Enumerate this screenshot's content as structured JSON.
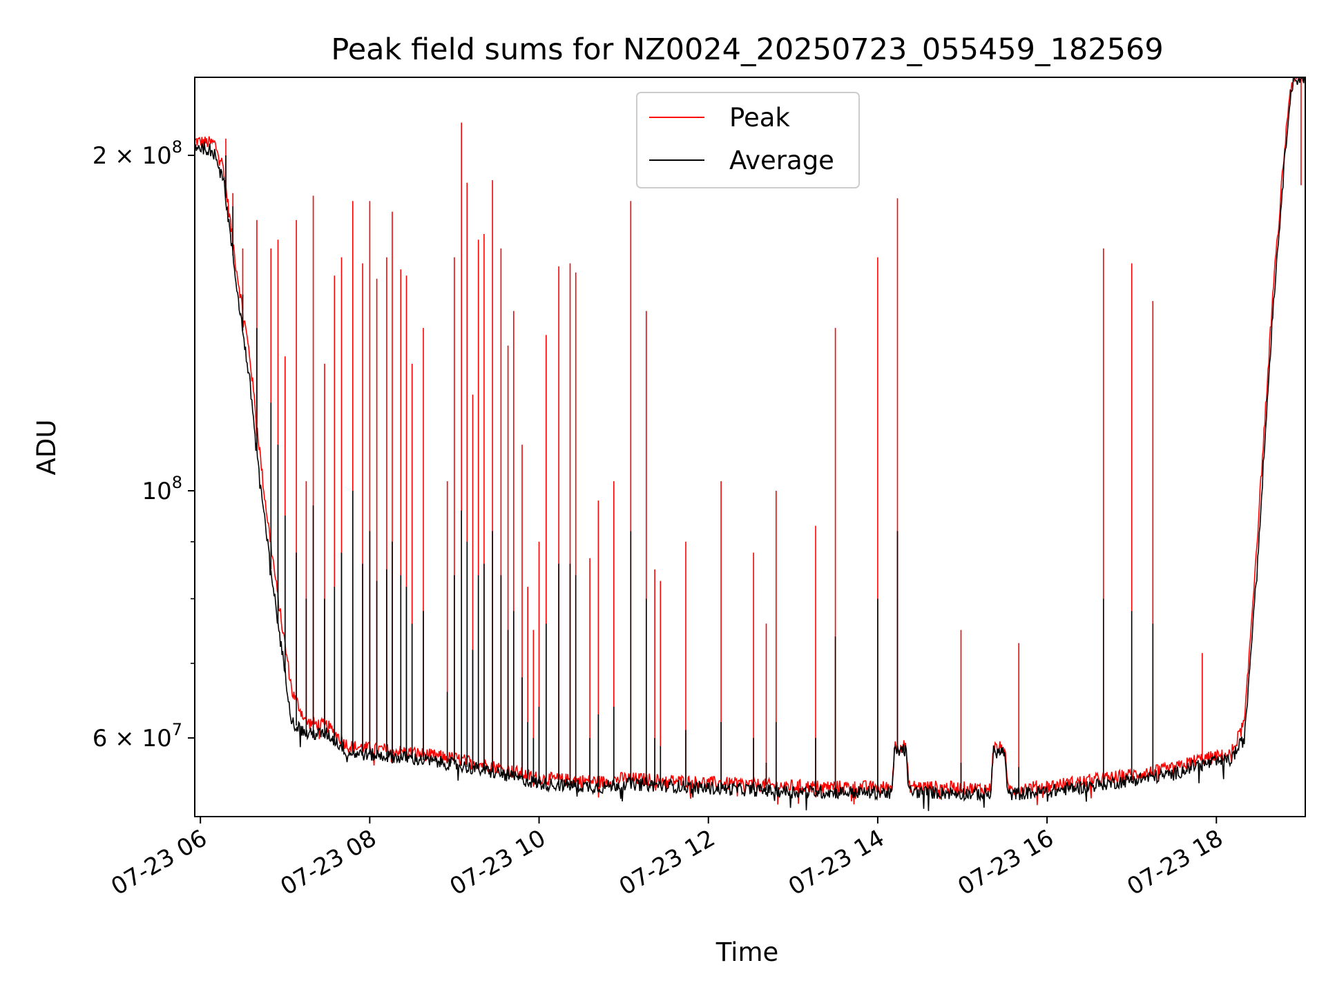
{
  "chart_data": {
    "type": "line",
    "title": "Peak field sums for NZ0024_20250723_055459_182569",
    "xlabel": "Time",
    "ylabel": "ADU",
    "y_scale": "log",
    "ylim": [
      51000000,
      235000000
    ],
    "xlim": [
      "2025-07-23 05:56",
      "2025-07-23 19:03"
    ],
    "grid": true,
    "legend_position": "upper center",
    "x_ticks": [
      {
        "time": "2025-07-23 06:00",
        "label": "07-23 06"
      },
      {
        "time": "2025-07-23 08:00",
        "label": "07-23 08"
      },
      {
        "time": "2025-07-23 10:00",
        "label": "07-23 10"
      },
      {
        "time": "2025-07-23 12:00",
        "label": "07-23 12"
      },
      {
        "time": "2025-07-23 14:00",
        "label": "07-23 14"
      },
      {
        "time": "2025-07-23 16:00",
        "label": "07-23 16"
      },
      {
        "time": "2025-07-23 18:00",
        "label": "07-23 18"
      }
    ],
    "y_major_ticks": [
      {
        "value": 60000000,
        "base": "6",
        "mult": "×",
        "exp_base": "10",
        "exp": "7"
      },
      {
        "value": 100000000,
        "base": "",
        "mult": "",
        "exp_base": "10",
        "exp": "8"
      },
      {
        "value": 200000000,
        "base": "2",
        "mult": "×",
        "exp_base": "10",
        "exp": "8"
      }
    ],
    "y_minor_grid": [
      70000000,
      80000000,
      90000000
    ],
    "series": [
      {
        "name": "Peak",
        "color": "#ff0000",
        "baseline": [
          [
            "2025-07-23 05:56",
            206000000
          ],
          [
            "2025-07-23 06:10",
            205000000
          ],
          [
            "2025-07-23 06:16",
            196000000
          ],
          [
            "2025-07-23 06:25",
            160000000
          ],
          [
            "2025-07-23 06:35",
            132000000
          ],
          [
            "2025-07-23 06:45",
            100000000
          ],
          [
            "2025-07-23 06:55",
            80000000
          ],
          [
            "2025-07-23 07:05",
            66000000
          ],
          [
            "2025-07-23 07:15",
            62000000
          ],
          [
            "2025-07-23 07:30",
            61500000
          ],
          [
            "2025-07-23 07:45",
            59000000
          ],
          [
            "2025-07-23 08:30",
            58200000
          ],
          [
            "2025-07-23 09:00",
            57500000
          ],
          [
            "2025-07-23 09:30",
            56500000
          ],
          [
            "2025-07-23 10:00",
            55200000
          ],
          [
            "2025-07-23 10:45",
            54800000
          ],
          [
            "2025-07-23 11:00",
            55200000
          ],
          [
            "2025-07-23 12:00",
            54700000
          ],
          [
            "2025-07-23 13:00",
            54300000
          ],
          [
            "2025-07-23 13:58",
            54200000
          ],
          [
            "2025-07-23 14:10",
            54200000
          ],
          [
            "2025-07-23 14:12",
            59000000
          ],
          [
            "2025-07-23 14:20",
            59000000
          ],
          [
            "2025-07-23 14:22",
            54300000
          ],
          [
            "2025-07-23 15:20",
            54000000
          ],
          [
            "2025-07-23 15:22",
            58800000
          ],
          [
            "2025-07-23 15:30",
            58800000
          ],
          [
            "2025-07-23 15:32",
            54000000
          ],
          [
            "2025-07-23 16:00",
            54300000
          ],
          [
            "2025-07-23 17:00",
            55600000
          ],
          [
            "2025-07-23 17:30",
            56300000
          ],
          [
            "2025-07-23 17:45",
            57300000
          ],
          [
            "2025-07-23 18:10",
            58000000
          ],
          [
            "2025-07-23 18:20",
            62000000
          ],
          [
            "2025-07-23 18:30",
            95000000
          ],
          [
            "2025-07-23 18:40",
            150000000
          ],
          [
            "2025-07-23 18:48",
            200000000
          ],
          [
            "2025-07-23 18:52",
            228000000
          ],
          [
            "2025-07-23 18:55",
            235000000
          ],
          [
            "2025-07-23 19:03",
            235000000
          ]
        ],
        "spikes": [
          [
            "2025-07-23 06:18",
            207000000
          ],
          [
            "2025-07-23 06:23",
            185000000
          ],
          [
            "2025-07-23 06:30",
            165000000
          ],
          [
            "2025-07-23 06:40",
            175000000
          ],
          [
            "2025-07-23 06:50",
            165000000
          ],
          [
            "2025-07-23 06:55",
            168000000
          ],
          [
            "2025-07-23 07:00",
            132000000
          ],
          [
            "2025-07-23 07:08",
            175000000
          ],
          [
            "2025-07-23 07:15",
            102000000
          ],
          [
            "2025-07-23 07:20",
            184000000
          ],
          [
            "2025-07-23 07:28",
            130000000
          ],
          [
            "2025-07-23 07:35",
            156000000
          ],
          [
            "2025-07-23 07:40",
            162000000
          ],
          [
            "2025-07-23 07:48",
            182000000
          ],
          [
            "2025-07-23 07:55",
            160000000
          ],
          [
            "2025-07-23 08:00",
            182000000
          ],
          [
            "2025-07-23 08:05",
            155000000
          ],
          [
            "2025-07-23 08:12",
            162000000
          ],
          [
            "2025-07-23 08:16",
            178000000
          ],
          [
            "2025-07-23 08:22",
            158000000
          ],
          [
            "2025-07-23 08:26",
            156000000
          ],
          [
            "2025-07-23 08:30",
            130000000
          ],
          [
            "2025-07-23 08:38",
            140000000
          ],
          [
            "2025-07-23 08:55",
            102000000
          ],
          [
            "2025-07-23 09:00",
            162000000
          ],
          [
            "2025-07-23 09:05",
            214000000
          ],
          [
            "2025-07-23 09:09",
            189000000
          ],
          [
            "2025-07-23 09:13",
            122000000
          ],
          [
            "2025-07-23 09:17",
            168000000
          ],
          [
            "2025-07-23 09:21",
            170000000
          ],
          [
            "2025-07-23 09:27",
            190000000
          ],
          [
            "2025-07-23 09:33",
            165000000
          ],
          [
            "2025-07-23 09:38",
            135000000
          ],
          [
            "2025-07-23 09:42",
            145000000
          ],
          [
            "2025-07-23 09:48",
            110000000
          ],
          [
            "2025-07-23 09:52",
            82000000
          ],
          [
            "2025-07-23 09:56",
            75000000
          ],
          [
            "2025-07-23 10:00",
            90000000
          ],
          [
            "2025-07-23 10:05",
            138000000
          ],
          [
            "2025-07-23 10:14",
            159000000
          ],
          [
            "2025-07-23 10:22",
            160000000
          ],
          [
            "2025-07-23 10:26",
            157000000
          ],
          [
            "2025-07-23 10:36",
            87000000
          ],
          [
            "2025-07-23 10:42",
            98000000
          ],
          [
            "2025-07-23 10:53",
            102000000
          ],
          [
            "2025-07-23 11:05",
            182000000
          ],
          [
            "2025-07-23 11:16",
            145000000
          ],
          [
            "2025-07-23 11:22",
            85000000
          ],
          [
            "2025-07-23 11:26",
            83000000
          ],
          [
            "2025-07-23 11:44",
            90000000
          ],
          [
            "2025-07-23 12:09",
            102000000
          ],
          [
            "2025-07-23 12:32",
            88000000
          ],
          [
            "2025-07-23 12:41",
            76000000
          ],
          [
            "2025-07-23 12:48",
            100000000
          ],
          [
            "2025-07-23 13:16",
            93000000
          ],
          [
            "2025-07-23 13:30",
            140000000
          ],
          [
            "2025-07-23 14:00",
            162000000
          ],
          [
            "2025-07-23 14:14",
            183000000
          ],
          [
            "2025-07-23 14:59",
            75000000
          ],
          [
            "2025-07-23 15:40",
            73000000
          ],
          [
            "2025-07-23 16:40",
            165000000
          ],
          [
            "2025-07-23 17:00",
            160000000
          ],
          [
            "2025-07-23 17:15",
            148000000
          ],
          [
            "2025-07-23 17:50",
            71500000
          ],
          [
            "2025-07-23 19:00",
            188000000
          ],
          [
            "2025-07-23 19:03",
            88000000
          ]
        ]
      },
      {
        "name": "Average",
        "color": "#000000",
        "baseline": [
          [
            "2025-07-23 05:56",
            204000000
          ],
          [
            "2025-07-23 06:10",
            202000000
          ],
          [
            "2025-07-23 06:16",
            192000000
          ],
          [
            "2025-07-23 06:25",
            155000000
          ],
          [
            "2025-07-23 06:35",
            125000000
          ],
          [
            "2025-07-23 06:45",
            95000000
          ],
          [
            "2025-07-23 06:55",
            76000000
          ],
          [
            "2025-07-23 07:05",
            62000000
          ],
          [
            "2025-07-23 07:15",
            60500000
          ],
          [
            "2025-07-23 07:30",
            60500000
          ],
          [
            "2025-07-23 07:45",
            58200000
          ],
          [
            "2025-07-23 08:30",
            57500000
          ],
          [
            "2025-07-23 09:00",
            56800000
          ],
          [
            "2025-07-23 09:30",
            55800000
          ],
          [
            "2025-07-23 10:00",
            54600000
          ],
          [
            "2025-07-23 10:45",
            54200000
          ],
          [
            "2025-07-23 11:00",
            54600000
          ],
          [
            "2025-07-23 12:00",
            54100000
          ],
          [
            "2025-07-23 13:00",
            53700000
          ],
          [
            "2025-07-23 13:58",
            53600000
          ],
          [
            "2025-07-23 14:10",
            53600000
          ],
          [
            "2025-07-23 14:12",
            58500000
          ],
          [
            "2025-07-23 14:20",
            58500000
          ],
          [
            "2025-07-23 14:22",
            53700000
          ],
          [
            "2025-07-23 15:20",
            53400000
          ],
          [
            "2025-07-23 15:22",
            58300000
          ],
          [
            "2025-07-23 15:30",
            58300000
          ],
          [
            "2025-07-23 15:32",
            53400000
          ],
          [
            "2025-07-23 16:00",
            53700000
          ],
          [
            "2025-07-23 17:00",
            55000000
          ],
          [
            "2025-07-23 17:30",
            55700000
          ],
          [
            "2025-07-23 17:45",
            56700000
          ],
          [
            "2025-07-23 18:10",
            57300000
          ],
          [
            "2025-07-23 18:20",
            60000000
          ],
          [
            "2025-07-23 18:30",
            90000000
          ],
          [
            "2025-07-23 18:40",
            145000000
          ],
          [
            "2025-07-23 18:48",
            195000000
          ],
          [
            "2025-07-23 18:52",
            225000000
          ],
          [
            "2025-07-23 18:55",
            234000000
          ],
          [
            "2025-07-23 19:03",
            235000000
          ]
        ],
        "spikes": [
          [
            "2025-07-23 06:18",
            200000000
          ],
          [
            "2025-07-23 06:23",
            180000000
          ],
          [
            "2025-07-23 06:30",
            150000000
          ],
          [
            "2025-07-23 06:40",
            140000000
          ],
          [
            "2025-07-23 06:50",
            120000000
          ],
          [
            "2025-07-23 06:55",
            110000000
          ],
          [
            "2025-07-23 07:00",
            95000000
          ],
          [
            "2025-07-23 07:08",
            88000000
          ],
          [
            "2025-07-23 07:15",
            80000000
          ],
          [
            "2025-07-23 07:20",
            97000000
          ],
          [
            "2025-07-23 07:28",
            80000000
          ],
          [
            "2025-07-23 07:35",
            82000000
          ],
          [
            "2025-07-23 07:40",
            88000000
          ],
          [
            "2025-07-23 07:48",
            100000000
          ],
          [
            "2025-07-23 07:55",
            86000000
          ],
          [
            "2025-07-23 08:00",
            92000000
          ],
          [
            "2025-07-23 08:05",
            83000000
          ],
          [
            "2025-07-23 08:12",
            85000000
          ],
          [
            "2025-07-23 08:16",
            90000000
          ],
          [
            "2025-07-23 08:22",
            84000000
          ],
          [
            "2025-07-23 08:26",
            82000000
          ],
          [
            "2025-07-23 08:30",
            76000000
          ],
          [
            "2025-07-23 08:38",
            78000000
          ],
          [
            "2025-07-23 08:55",
            66000000
          ],
          [
            "2025-07-23 09:00",
            84000000
          ],
          [
            "2025-07-23 09:05",
            96000000
          ],
          [
            "2025-07-23 09:09",
            90000000
          ],
          [
            "2025-07-23 09:13",
            72000000
          ],
          [
            "2025-07-23 09:17",
            84000000
          ],
          [
            "2025-07-23 09:21",
            86000000
          ],
          [
            "2025-07-23 09:27",
            92000000
          ],
          [
            "2025-07-23 09:33",
            84000000
          ],
          [
            "2025-07-23 09:38",
            75000000
          ],
          [
            "2025-07-23 09:42",
            78000000
          ],
          [
            "2025-07-23 09:48",
            68000000
          ],
          [
            "2025-07-23 09:52",
            62000000
          ],
          [
            "2025-07-23 09:56",
            60000000
          ],
          [
            "2025-07-23 10:00",
            64000000
          ],
          [
            "2025-07-23 10:05",
            76000000
          ],
          [
            "2025-07-23 10:14",
            86000000
          ],
          [
            "2025-07-23 10:22",
            86000000
          ],
          [
            "2025-07-23 10:26",
            84000000
          ],
          [
            "2025-07-23 10:36",
            60000000
          ],
          [
            "2025-07-23 10:42",
            63000000
          ],
          [
            "2025-07-23 10:53",
            64000000
          ],
          [
            "2025-07-23 11:05",
            92000000
          ],
          [
            "2025-07-23 11:16",
            80000000
          ],
          [
            "2025-07-23 11:22",
            60000000
          ],
          [
            "2025-07-23 11:26",
            59000000
          ],
          [
            "2025-07-23 11:44",
            61000000
          ],
          [
            "2025-07-23 12:09",
            62000000
          ],
          [
            "2025-07-23 12:32",
            60000000
          ],
          [
            "2025-07-23 12:41",
            57000000
          ],
          [
            "2025-07-23 12:48",
            62000000
          ],
          [
            "2025-07-23 13:16",
            60000000
          ],
          [
            "2025-07-23 13:30",
            74000000
          ],
          [
            "2025-07-23 14:00",
            80000000
          ],
          [
            "2025-07-23 14:14",
            92000000
          ],
          [
            "2025-07-23 14:59",
            57000000
          ],
          [
            "2025-07-23 15:40",
            56500000
          ],
          [
            "2025-07-23 16:40",
            80000000
          ],
          [
            "2025-07-23 17:00",
            78000000
          ],
          [
            "2025-07-23 17:15",
            76000000
          ],
          [
            "2025-07-23 17:50",
            56000000
          ],
          [
            "2025-07-23 19:03",
            62000000
          ]
        ]
      }
    ]
  }
}
